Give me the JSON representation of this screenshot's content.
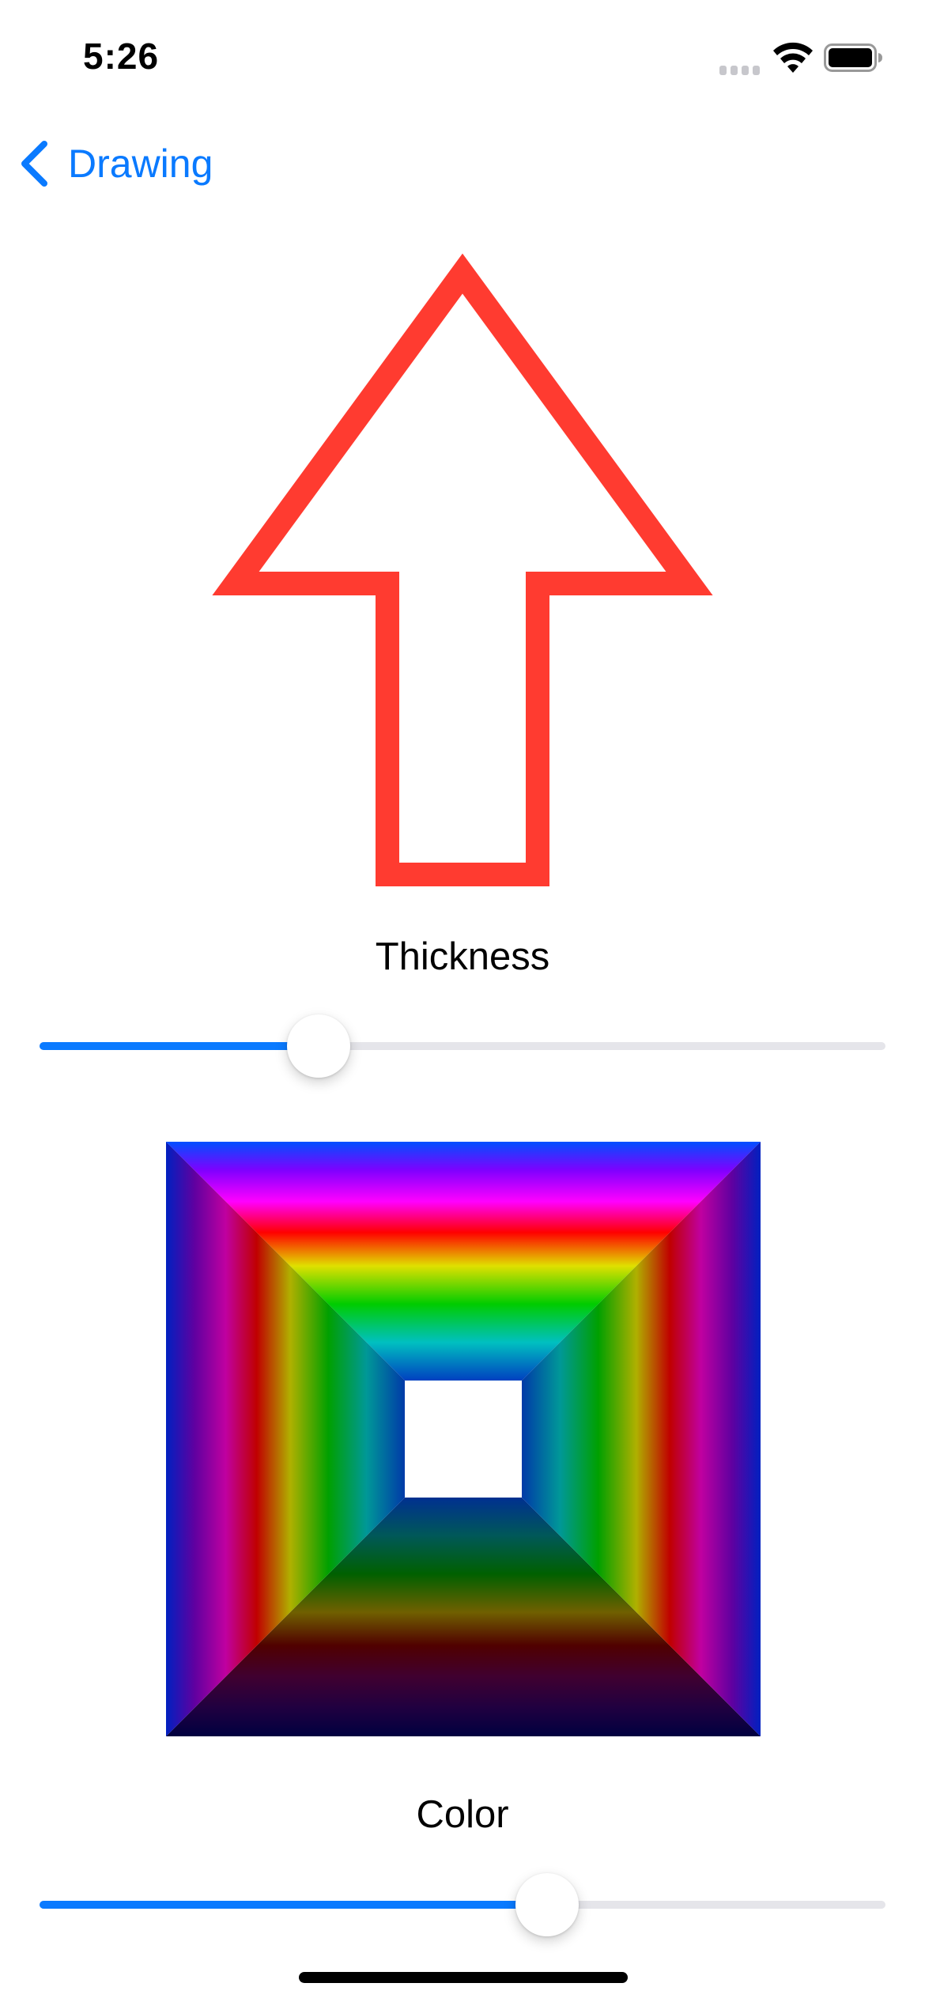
{
  "status_bar": {
    "time": "5:26",
    "wifi_icon": "wifi-icon",
    "battery_icon": "battery-icon",
    "signal_icon": "cell-signal-icon"
  },
  "navigation": {
    "back_label": "Drawing",
    "back_icon": "chevron-left-icon"
  },
  "arrow": {
    "stroke_color": "#ff3b30"
  },
  "thickness": {
    "label": "Thickness",
    "value": 0.33
  },
  "gradient_square": {
    "description_colors": [
      "#0050ff",
      "#ff00ff",
      "#ff0000",
      "#ffff00",
      "#00cc00",
      "#00c0c0",
      "#0040c0"
    ]
  },
  "color": {
    "label": "Color",
    "value": 0.6
  },
  "theme": {
    "accent": "#0a7aff",
    "track": "#e5e5ea"
  }
}
